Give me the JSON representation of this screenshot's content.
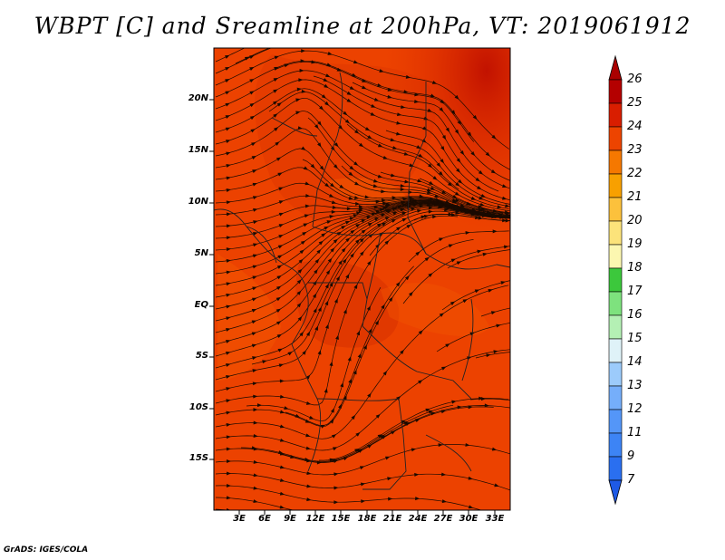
{
  "title": "WBPT [C] and Sreamline at 200hPa, VT: 2019061912",
  "footer": "GrADS: IGES/COLA",
  "map": {
    "lat_labels": [
      "20N",
      "15N",
      "10N",
      "5N",
      "EQ",
      "5S",
      "10S",
      "15S"
    ],
    "lon_labels": [
      "3E",
      "6E",
      "9E",
      "12E",
      "15E",
      "18E",
      "21E",
      "24E",
      "27E",
      "30E",
      "33E"
    ]
  },
  "colorbar": {
    "levels": [
      "7",
      "9",
      "11",
      "12",
      "13",
      "14",
      "15",
      "16",
      "17",
      "18",
      "19",
      "20",
      "21",
      "22",
      "23",
      "24",
      "25",
      "26"
    ],
    "colors": [
      "#1e5ae6",
      "#2a6ff0",
      "#3d84f5",
      "#5496f8",
      "#75aefa",
      "#9ccbfb",
      "#dff2f8",
      "#b4f0b4",
      "#7ee27e",
      "#3cc83c",
      "#fcf7b0",
      "#fce37a",
      "#fcc13c",
      "#f8a000",
      "#f57800",
      "#ed4400",
      "#d91e00",
      "#b40000",
      "#aa0000"
    ]
  }
}
